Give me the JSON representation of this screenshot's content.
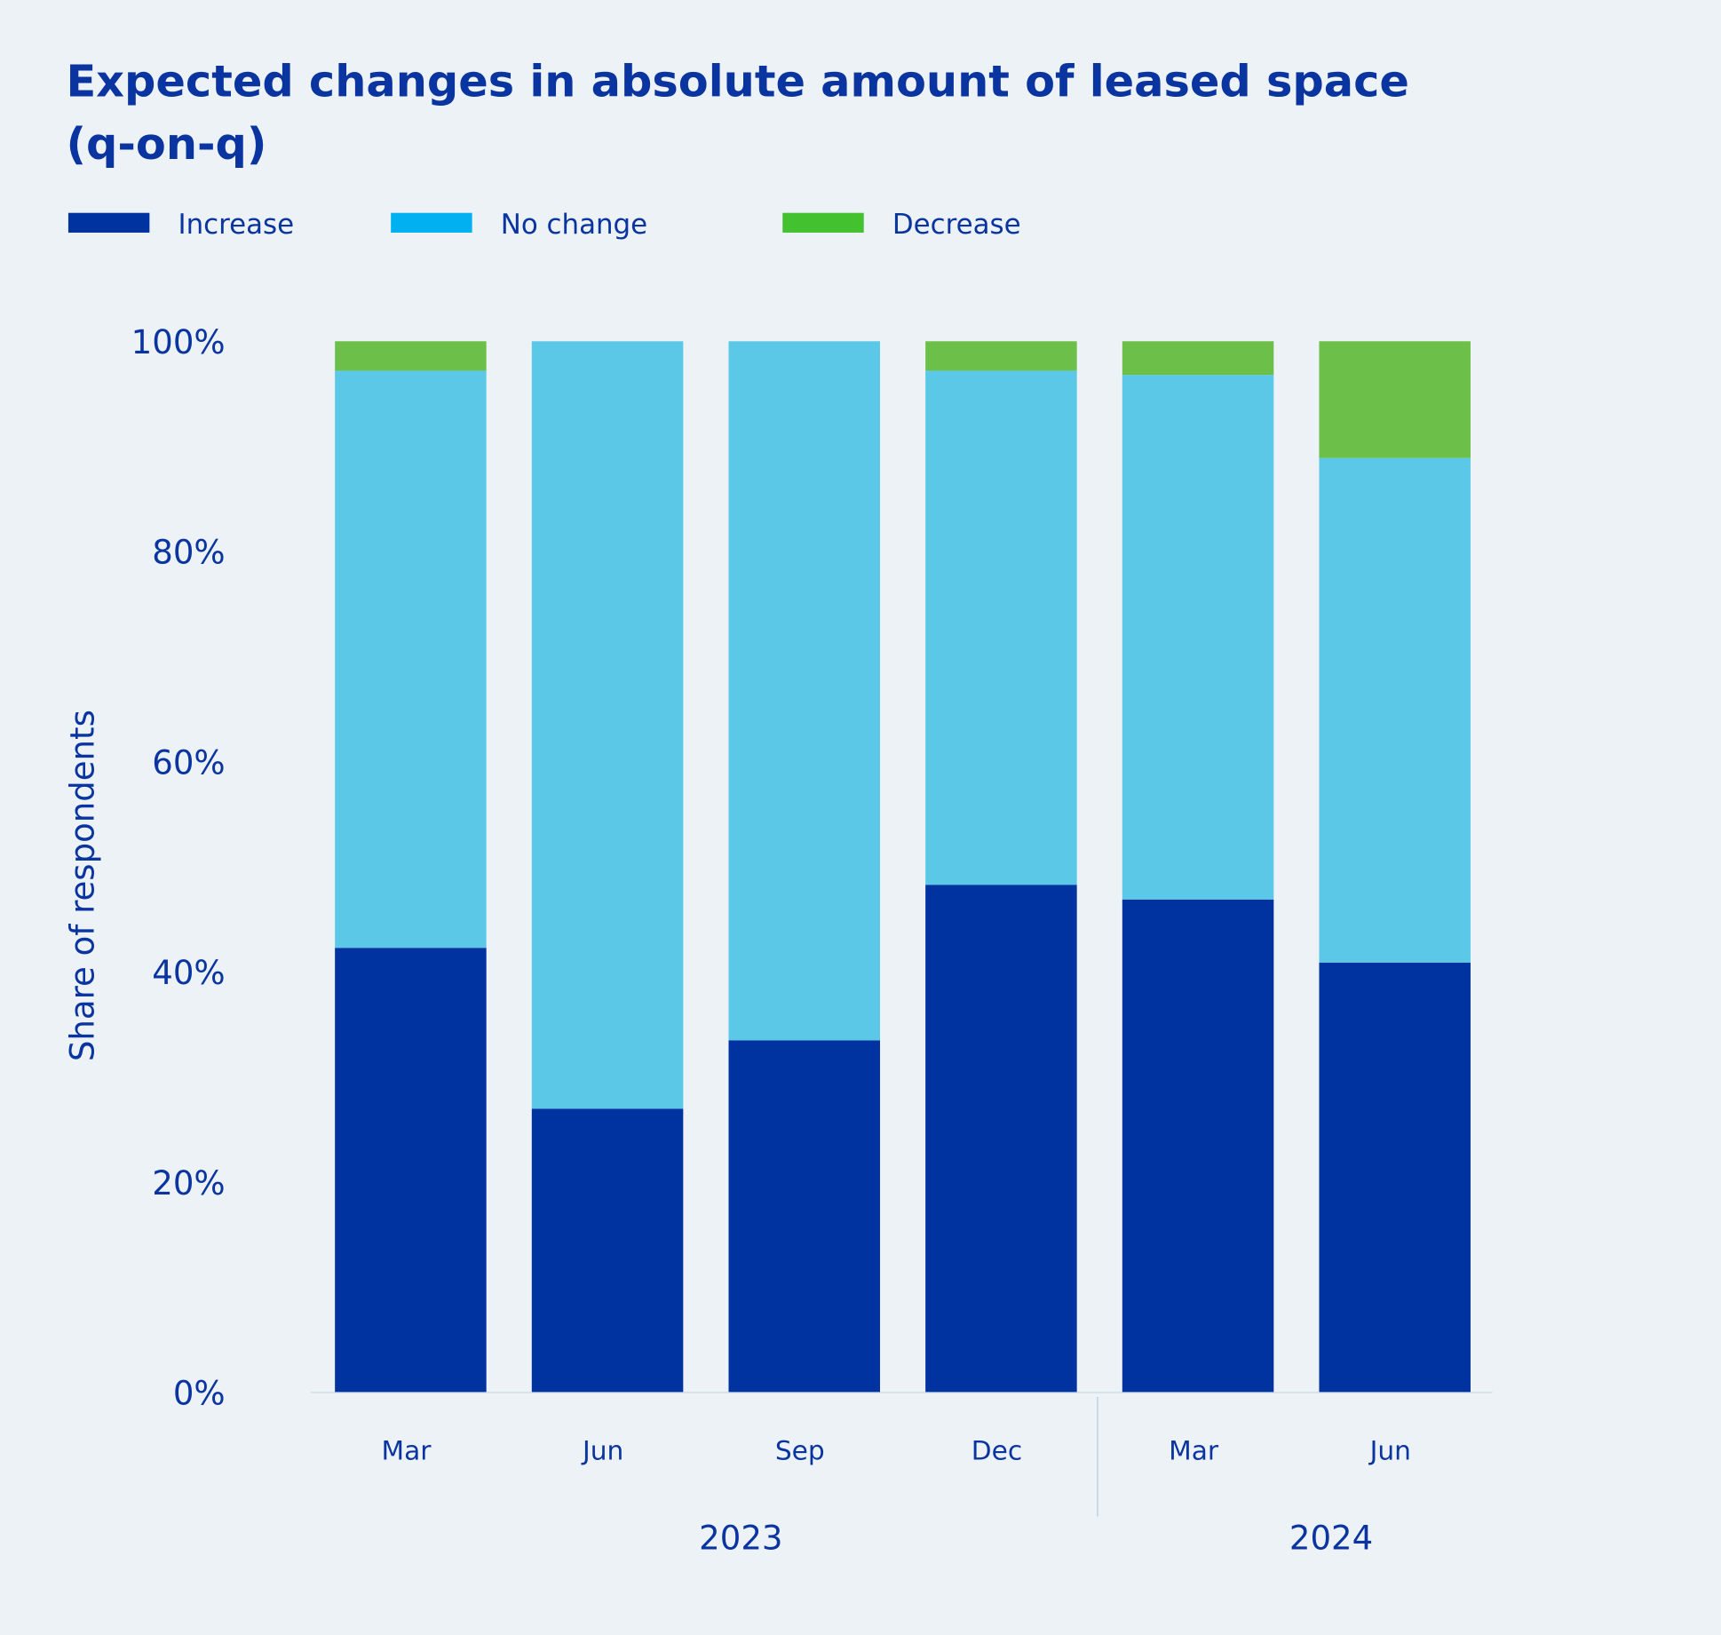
{
  "chart_data": {
    "type": "bar",
    "stacked": true,
    "title": "Expected changes in absolute amount of leased space (q-on-q)",
    "title_lines": [
      "Expected changes in absolute amount of leased space",
      "(q-on-q)"
    ],
    "ylabel": "Share of respondents",
    "xlabel": "",
    "ylim": [
      0,
      100
    ],
    "yticks": [
      "0%",
      "20%",
      "40%",
      "60%",
      "80%",
      "100%"
    ],
    "categories": [
      "Mar",
      "Jun",
      "Sep",
      "Dec",
      "Mar",
      "Jun"
    ],
    "year_groups": [
      {
        "label": "2023",
        "count": 4
      },
      {
        "label": "2024",
        "count": 2
      }
    ],
    "legend_position": "top-left",
    "grid": false,
    "series": [
      {
        "name": "Increase",
        "color": "#0033a0",
        "legend_color": "#0033a0",
        "values": [
          42.3,
          27.0,
          33.5,
          48.3,
          46.9,
          40.9
        ]
      },
      {
        "name": "No change",
        "color": "#5bc8e7",
        "legend_color": "#00b0f0",
        "values": [
          54.9,
          73.0,
          66.5,
          48.9,
          49.9,
          48.0
        ]
      },
      {
        "name": "Decrease",
        "color": "#6cc04a",
        "legend_color": "#44c12e",
        "values": [
          2.8,
          0.0,
          0.0,
          2.8,
          3.2,
          11.1
        ]
      }
    ]
  }
}
